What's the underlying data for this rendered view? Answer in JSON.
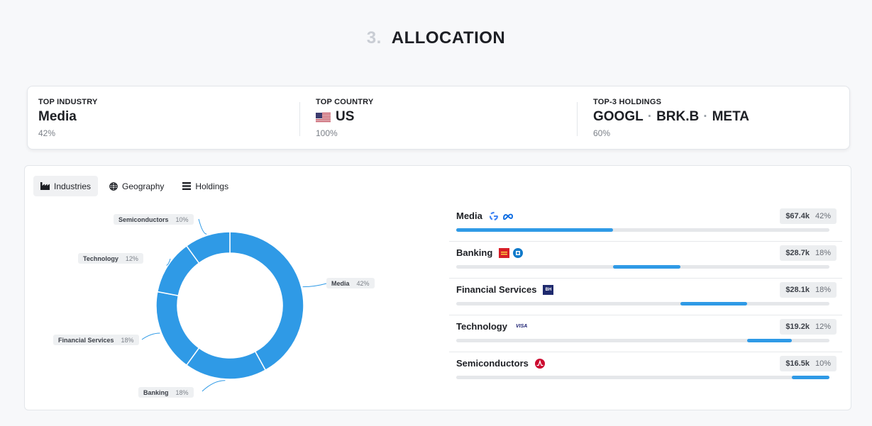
{
  "section": {
    "number": "3.",
    "title": "ALLOCATION"
  },
  "summary": {
    "top_industry": {
      "label": "TOP INDUSTRY",
      "value": "Media",
      "pct": "42%"
    },
    "top_country": {
      "label": "TOP COUNTRY",
      "value": "US",
      "pct": "100%",
      "flag": "us-flag-icon"
    },
    "top_holdings": {
      "label": "TOP-3 HOLDINGS",
      "tickers": [
        "GOOGL",
        "BRK.B",
        "META"
      ],
      "separator": "·",
      "pct": "60%"
    }
  },
  "tabs": [
    {
      "label": "Industries",
      "icon": "factory-icon",
      "active": true
    },
    {
      "label": "Geography",
      "icon": "globe-icon",
      "active": false
    },
    {
      "label": "Holdings",
      "icon": "list-icon",
      "active": false
    }
  ],
  "colors": {
    "accent": "#2f9ae6",
    "track": "#e5e7ea"
  },
  "chart_data": {
    "type": "pie",
    "style": "donut",
    "categories": [
      "Media",
      "Banking",
      "Financial Services",
      "Technology",
      "Semiconductors"
    ],
    "values": [
      42,
      18,
      18,
      12,
      10
    ],
    "labels": [
      "42%",
      "18%",
      "18%",
      "12%",
      "10%"
    ]
  },
  "industries": [
    {
      "name": "Media",
      "amount": "$67.4k",
      "pct": "42%",
      "share": 0.42,
      "logos": [
        "google-logo-icon",
        "meta-logo-icon"
      ]
    },
    {
      "name": "Banking",
      "amount": "$28.7k",
      "pct": "18%",
      "share": 0.18,
      "logos": [
        "wells-fargo-logo-icon",
        "chase-logo-icon"
      ]
    },
    {
      "name": "Financial Services",
      "amount": "$28.1k",
      "pct": "18%",
      "share": 0.18,
      "logos": [
        "berkshire-logo-icon"
      ]
    },
    {
      "name": "Technology",
      "amount": "$19.2k",
      "pct": "12%",
      "share": 0.12,
      "logos": [
        "visa-logo-icon"
      ]
    },
    {
      "name": "Semiconductors",
      "amount": "$16.5k",
      "pct": "10%",
      "share": 0.1,
      "logos": [
        "broadcom-logo-icon"
      ]
    }
  ],
  "logo_text": {
    "berkshire": "BH",
    "visa": "VISA"
  }
}
